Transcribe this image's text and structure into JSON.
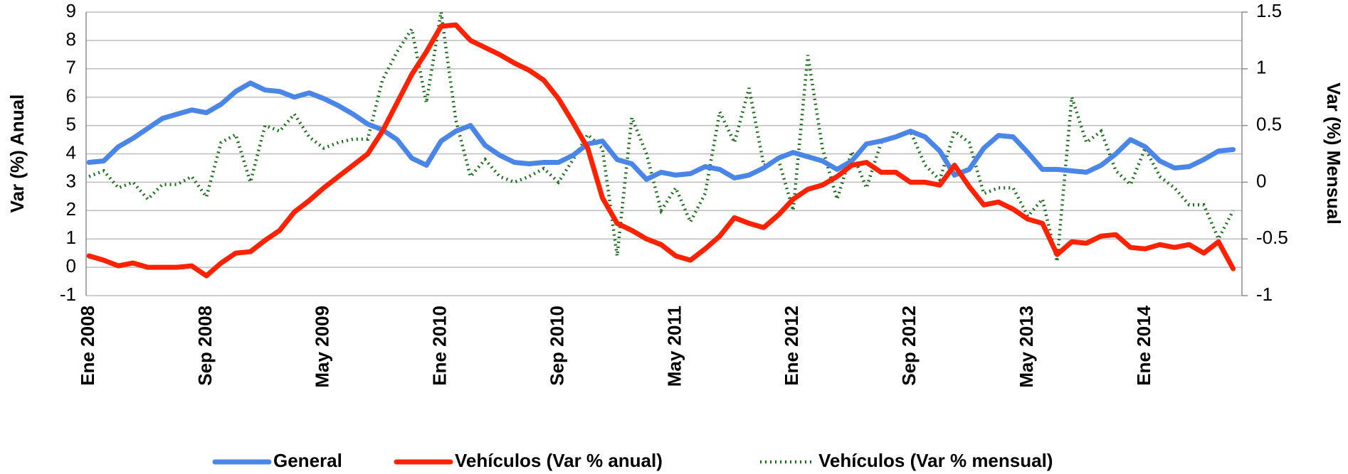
{
  "chart_data": {
    "type": "line",
    "y_label": "Var (%) Anual",
    "y2_label": "Var (%) Mensual",
    "categories": [
      "Ene 2008",
      null,
      null,
      null,
      null,
      null,
      null,
      null,
      "Sep 2008",
      null,
      null,
      null,
      null,
      null,
      null,
      null,
      "May 2009",
      null,
      null,
      null,
      null,
      null,
      null,
      null,
      "Ene 2010",
      null,
      null,
      null,
      null,
      null,
      null,
      null,
      "Sep 2010",
      null,
      null,
      null,
      null,
      null,
      null,
      null,
      "May 2011",
      null,
      null,
      null,
      null,
      null,
      null,
      null,
      "Ene 2012",
      null,
      null,
      null,
      null,
      null,
      null,
      null,
      "Sep 2012",
      null,
      null,
      null,
      null,
      null,
      null,
      null,
      "May 2013",
      null,
      null,
      null,
      null,
      null,
      null,
      null,
      "Ene 2014",
      null,
      null,
      null,
      null,
      null,
      null
    ],
    "series": [
      {
        "name": "General",
        "color": "#4a86e8",
        "style": "solid",
        "values": [
          3.7,
          3.75,
          4.25,
          4.55,
          4.9,
          5.25,
          5.4,
          5.55,
          5.45,
          5.75,
          6.2,
          6.5,
          6.25,
          6.2,
          6.0,
          6.15,
          5.95,
          5.7,
          5.4,
          5.05,
          4.85,
          4.5,
          3.85,
          3.6,
          4.45,
          4.8,
          5.0,
          4.3,
          3.95,
          3.7,
          3.65,
          3.7,
          3.7,
          3.95,
          4.35,
          4.45,
          3.8,
          3.65,
          3.1,
          3.35,
          3.25,
          3.3,
          3.55,
          3.45,
          3.15,
          3.25,
          3.5,
          3.85,
          4.05,
          3.9,
          3.75,
          3.45,
          3.75,
          4.35,
          4.45,
          4.6,
          4.8,
          4.6,
          4.1,
          3.25,
          3.45,
          4.2,
          4.65,
          4.6,
          4.05,
          3.45,
          3.45,
          3.4,
          3.35,
          3.6,
          4.0,
          4.5,
          4.25,
          3.75,
          3.5,
          3.55,
          3.8,
          4.1,
          4.15
        ]
      },
      {
        "name": "Vehículos (Var % anual)",
        "color": "#ff2200",
        "style": "solid",
        "values": [
          0.4,
          0.25,
          0.05,
          0.15,
          0,
          0,
          0,
          0.05,
          -0.3,
          0.15,
          0.5,
          0.55,
          0.95,
          1.3,
          1.95,
          2.35,
          2.8,
          3.2,
          3.6,
          4.0,
          4.8,
          5.8,
          6.8,
          7.6,
          8.5,
          8.55,
          8.0,
          7.75,
          7.5,
          7.2,
          6.95,
          6.6,
          5.95,
          5.1,
          4.2,
          2.45,
          1.55,
          1.3,
          1.0,
          0.8,
          0.4,
          0.25,
          0.65,
          1.1,
          1.75,
          1.55,
          1.4,
          1.85,
          2.4,
          2.75,
          2.9,
          3.2,
          3.6,
          3.7,
          3.35,
          3.35,
          3.0,
          3.0,
          2.9,
          3.6,
          2.85,
          2.2,
          2.3,
          2.05,
          1.7,
          1.55,
          0.45,
          0.9,
          0.85,
          1.1,
          1.15,
          0.7,
          0.65,
          0.8,
          0.7,
          0.8,
          0.5,
          0.9,
          -0.05
        ]
      },
      {
        "name": "Vehículos (Var % mensual)",
        "color": "#1b6e1b",
        "style": "dotted",
        "axis": "y2",
        "values": [
          0.05,
          0.1,
          -0.05,
          0,
          -0.15,
          -0.02,
          -0.02,
          0.05,
          -0.13,
          0.35,
          0.42,
          0,
          0.5,
          0.45,
          0.6,
          0.4,
          0.3,
          0.35,
          0.38,
          0.38,
          0.9,
          1.15,
          1.35,
          0.7,
          1.5,
          0.55,
          0.05,
          0.2,
          0.05,
          0,
          0.05,
          0.12,
          0,
          0.2,
          0.42,
          0.3,
          -0.65,
          0.57,
          0.25,
          -0.25,
          -0.05,
          -0.35,
          -0.1,
          0.62,
          0.35,
          0.83,
          0.15,
          0.2,
          -0.25,
          1.12,
          0.3,
          -0.15,
          0.27,
          -0.05,
          0.35,
          0.4,
          0.45,
          0.15,
          0.02,
          0.45,
          0.35,
          -0.1,
          -0.05,
          -0.05,
          -0.3,
          -0.15,
          -0.7,
          0.75,
          0.35,
          0.45,
          0.1,
          -0.02,
          0.3,
          0.05,
          -0.05,
          -0.2,
          -0.2,
          -0.5,
          -0.25
        ]
      }
    ],
    "ylim": [
      -1,
      9
    ],
    "yticks": [
      -1,
      0,
      1,
      2,
      3,
      4,
      5,
      6,
      7,
      8,
      9
    ],
    "y2lim": [
      -1,
      1.5
    ],
    "y2ticks": [
      -1,
      -0.5,
      0,
      0.5,
      1,
      1.5
    ],
    "grid": true,
    "legend": "bottom"
  }
}
